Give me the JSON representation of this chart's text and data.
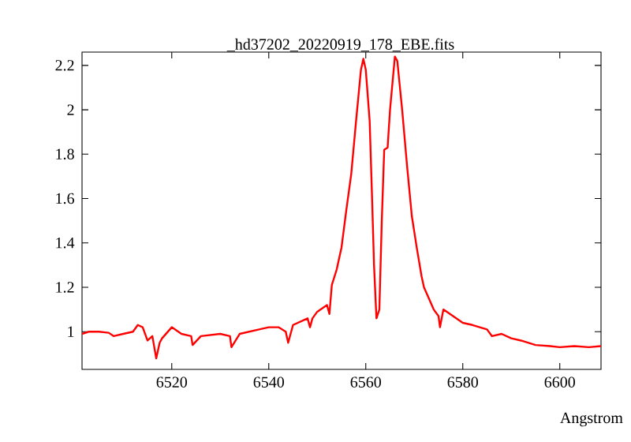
{
  "chart_data": {
    "type": "line",
    "title": "_hd37202_20220919_178_EBE.fits",
    "xlabel": "Angstrom",
    "x": [
      6501.5,
      6503,
      6505,
      6507,
      6508,
      6510,
      6512,
      6513,
      6514,
      6515,
      6516,
      6516.8,
      6517.5,
      6518,
      6520,
      6522,
      6524,
      6524.3,
      6526,
      6530,
      6532,
      6532.3,
      6534,
      6538,
      6540,
      6542,
      6543.5,
      6544,
      6545,
      6548,
      6548.5,
      6549,
      6550,
      6552,
      6552.5,
      6553,
      6554,
      6555,
      6556,
      6557,
      6558,
      6559,
      6559.5,
      6560,
      6560.8,
      6561.3,
      6561.7,
      6562.2,
      6562.8,
      6563.3,
      6563.8,
      6564.5,
      6565,
      6566,
      6566.5,
      6567.5,
      6568.5,
      6569.5,
      6570.5,
      6571.5,
      6572,
      6573,
      6574,
      6575,
      6575.3,
      6576,
      6578,
      6580,
      6582,
      6585,
      6586,
      6588,
      6590,
      6592,
      6595,
      6598,
      6600,
      6603,
      6606,
      6608.5
    ],
    "series": [
      {
        "color": "#ff0000",
        "values": [
          0.99,
          1.0,
          1.0,
          0.995,
          0.98,
          0.99,
          1.0,
          1.03,
          1.02,
          0.96,
          0.98,
          0.88,
          0.95,
          0.97,
          1.02,
          0.99,
          0.98,
          0.94,
          0.98,
          0.99,
          0.98,
          0.93,
          0.99,
          1.01,
          1.02,
          1.02,
          1.0,
          0.95,
          1.03,
          1.06,
          1.02,
          1.06,
          1.09,
          1.12,
          1.08,
          1.21,
          1.28,
          1.38,
          1.55,
          1.71,
          1.95,
          2.18,
          2.23,
          2.18,
          1.95,
          1.6,
          1.3,
          1.06,
          1.1,
          1.5,
          1.82,
          1.83,
          2.0,
          2.24,
          2.22,
          2.0,
          1.75,
          1.52,
          1.38,
          1.25,
          1.2,
          1.15,
          1.1,
          1.07,
          1.02,
          1.1,
          1.07,
          1.04,
          1.03,
          1.01,
          0.98,
          0.99,
          0.97,
          0.96,
          0.94,
          0.935,
          0.93,
          0.935,
          0.93,
          0.935
        ]
      }
    ],
    "xlim": [
      6501.5,
      6608.5
    ],
    "ylim": [
      0.83,
      2.26
    ],
    "xticks": [
      6520,
      6540,
      6560,
      6580,
      6600
    ],
    "yticks": [
      1,
      1.2,
      1.4,
      1.6,
      1.8,
      2,
      2.2
    ],
    "grid": false,
    "marker": "none",
    "line_style": "solid"
  }
}
